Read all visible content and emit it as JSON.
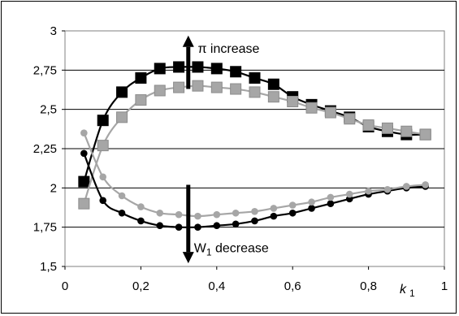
{
  "chart_data": {
    "type": "line",
    "xlabel": "k",
    "xlabel_sub": "1",
    "xlim": [
      0,
      1
    ],
    "ylim": [
      1.5,
      3
    ],
    "x_ticks": [
      0,
      0.2,
      0.4,
      0.6,
      0.8,
      1
    ],
    "x_tick_labels": [
      "0",
      "0,2",
      "0,4",
      "0,6",
      "0,8",
      "1"
    ],
    "y_ticks": [
      1.5,
      1.75,
      2,
      2.25,
      2.5,
      2.75,
      3
    ],
    "y_tick_labels": [
      "1,5",
      "1,75",
      "2",
      "2,25",
      "2,5",
      "2,75",
      "3"
    ],
    "grid": "horizontal",
    "colors": {
      "black": "#000000",
      "gray": "#a6a6a6",
      "plot_border": "#808080",
      "grid": "#000000"
    },
    "series": [
      {
        "marker": "square",
        "color": "#000000",
        "x": [
          0.05,
          0.1,
          0.15,
          0.2,
          0.25,
          0.3,
          0.35,
          0.4,
          0.45,
          0.5,
          0.55,
          0.6,
          0.65,
          0.7,
          0.75,
          0.8,
          0.85,
          0.9,
          0.95
        ],
        "y": [
          2.04,
          2.43,
          2.61,
          2.7,
          2.76,
          2.77,
          2.77,
          2.76,
          2.74,
          2.7,
          2.66,
          2.58,
          2.53,
          2.49,
          2.45,
          2.39,
          2.36,
          2.34,
          2.34
        ]
      },
      {
        "marker": "square",
        "color": "#a6a6a6",
        "x": [
          0.05,
          0.1,
          0.15,
          0.2,
          0.25,
          0.3,
          0.35,
          0.4,
          0.45,
          0.5,
          0.55,
          0.6,
          0.65,
          0.7,
          0.75,
          0.8,
          0.85,
          0.9,
          0.95
        ],
        "y": [
          1.9,
          2.27,
          2.45,
          2.56,
          2.62,
          2.64,
          2.65,
          2.64,
          2.63,
          2.61,
          2.58,
          2.55,
          2.51,
          2.48,
          2.44,
          2.4,
          2.38,
          2.36,
          2.34
        ]
      },
      {
        "marker": "circle",
        "color": "#000000",
        "x": [
          0.05,
          0.1,
          0.15,
          0.2,
          0.25,
          0.3,
          0.35,
          0.4,
          0.45,
          0.5,
          0.55,
          0.6,
          0.65,
          0.7,
          0.75,
          0.8,
          0.85,
          0.9,
          0.95
        ],
        "y": [
          2.22,
          1.92,
          1.84,
          1.79,
          1.76,
          1.75,
          1.75,
          1.76,
          1.77,
          1.79,
          1.82,
          1.84,
          1.87,
          1.9,
          1.93,
          1.96,
          1.98,
          2.0,
          2.01
        ]
      },
      {
        "marker": "circle",
        "color": "#a6a6a6",
        "x": [
          0.05,
          0.1,
          0.15,
          0.2,
          0.25,
          0.3,
          0.35,
          0.4,
          0.45,
          0.5,
          0.55,
          0.6,
          0.65,
          0.7,
          0.75,
          0.8,
          0.85,
          0.9,
          0.95
        ],
        "y": [
          2.35,
          2.07,
          1.95,
          1.88,
          1.84,
          1.83,
          1.82,
          1.83,
          1.84,
          1.85,
          1.87,
          1.89,
          1.91,
          1.94,
          1.96,
          1.98,
          1.99,
          2.01,
          2.02
        ]
      }
    ],
    "annotations": [
      {
        "text": "π increase",
        "x": 0.35,
        "y": 2.86
      },
      {
        "text": "W",
        "sub": "1",
        "rest": " decrease",
        "x": 0.34,
        "y": 1.59
      }
    ],
    "arrows": [
      {
        "x": 0.325,
        "from": 2.63,
        "to": 2.97
      },
      {
        "x": 0.325,
        "from": 2.02,
        "to": 1.52
      }
    ]
  }
}
